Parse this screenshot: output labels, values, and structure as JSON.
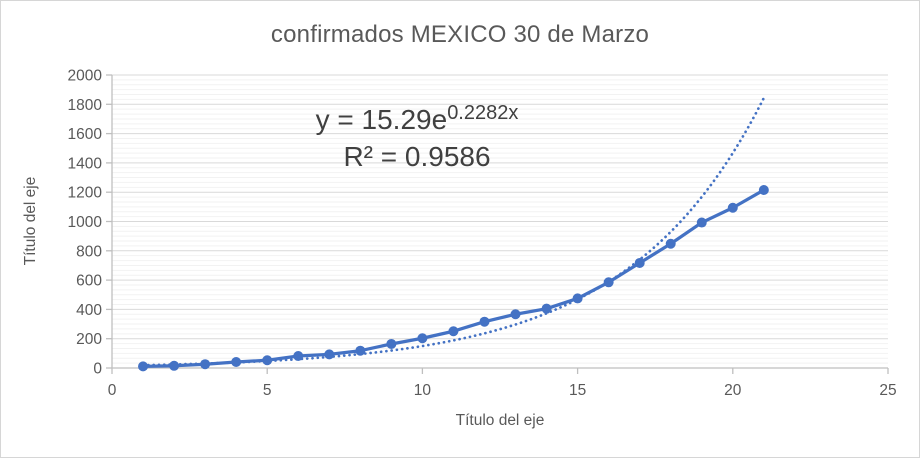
{
  "chart_data": {
    "type": "line",
    "title": "confirmados MEXICO 30 de Marzo",
    "xlabel": "Título del eje",
    "ylabel": "Título del eje",
    "x": [
      1,
      2,
      3,
      4,
      5,
      6,
      7,
      8,
      9,
      10,
      11,
      12,
      13,
      14,
      15,
      16,
      17,
      18,
      19,
      20,
      21
    ],
    "series": [
      {
        "name": "confirmados",
        "values": [
          11,
          15,
          26,
          41,
          53,
          82,
          93,
          118,
          164,
          203,
          251,
          316,
          367,
          405,
          475,
          585,
          717,
          848,
          993,
          1094,
          1215
        ]
      }
    ],
    "trendline": {
      "type": "exponential",
      "coefficient": 15.29,
      "exponent_rate": 0.2282,
      "equation_base": "y = 15.29e",
      "equation_exponent": "0.2282x",
      "r_squared_label": "R² = 0.9586",
      "x_start": 1,
      "x_end": 21
    },
    "xlim": [
      0,
      25
    ],
    "ylim": [
      0,
      2000
    ],
    "x_ticks": [
      0,
      5,
      10,
      15,
      20,
      25
    ],
    "y_ticks": [
      0,
      200,
      400,
      600,
      800,
      1000,
      1200,
      1400,
      1600,
      1800,
      2000
    ],
    "grid": {
      "major": true,
      "minor": true,
      "minor_per_major": 6
    },
    "legend": "none",
    "colors": {
      "series": "#4472C4",
      "trendline": "#4472C4",
      "axis_line": "#BFBFBF",
      "major_gridline": "#D9D9D9",
      "minor_gridline": "#F2F2F2",
      "tick_label": "#595959",
      "title": "#595959",
      "equation": "#404040",
      "background": "#FFFFFF",
      "border": "#D6D6D6"
    }
  }
}
